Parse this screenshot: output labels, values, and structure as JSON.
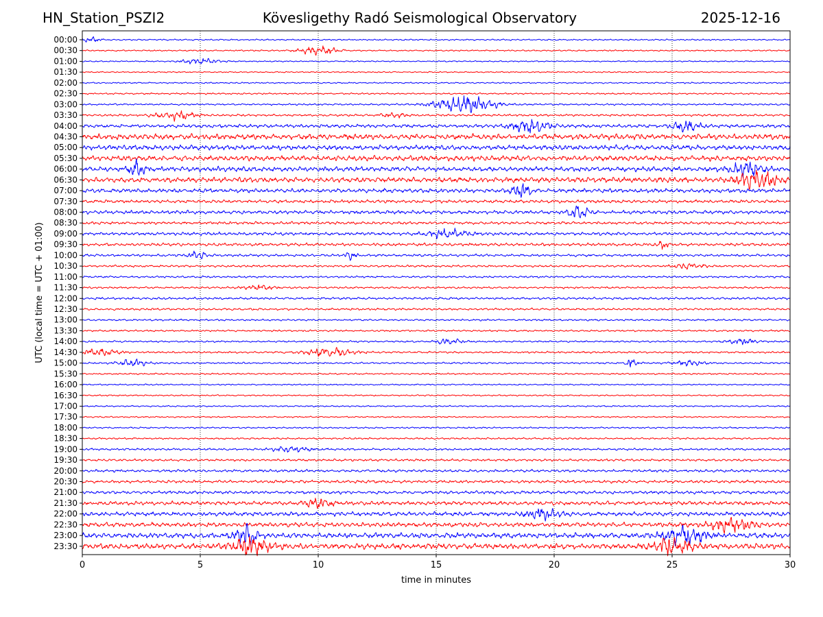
{
  "header": {
    "station": "HN_Station_PSZI2",
    "title": "Kövesligethy Radó Seismological Observatory",
    "date": "2025-12-16"
  },
  "chart_data": {
    "type": "line",
    "subtype": "helicorder",
    "title": "Kövesligethy Radó Seismological Observatory",
    "xlabel": "time in minutes",
    "ylabel": "UTC (local time = UTC + 01:00)",
    "xlim": [
      0,
      30
    ],
    "xticks": [
      0,
      5,
      10,
      15,
      20,
      25,
      30
    ],
    "grid": "vertical dotted at 5-minute intervals",
    "row_labels": [
      "00:00",
      "00:30",
      "01:00",
      "01:30",
      "02:00",
      "02:30",
      "03:00",
      "03:30",
      "04:00",
      "04:30",
      "05:00",
      "05:30",
      "06:00",
      "06:30",
      "07:00",
      "07:30",
      "08:00",
      "08:30",
      "09:00",
      "09:30",
      "10:00",
      "10:30",
      "11:00",
      "11:30",
      "12:00",
      "12:30",
      "13:00",
      "13:30",
      "14:00",
      "14:30",
      "15:00",
      "15:30",
      "16:00",
      "16:30",
      "17:00",
      "17:30",
      "18:00",
      "18:30",
      "19:00",
      "19:30",
      "20:00",
      "20:30",
      "21:00",
      "21:30",
      "22:00",
      "22:30",
      "23:00",
      "23:30"
    ],
    "trace_colors": [
      "#0000ff",
      "#ff0000"
    ],
    "noise_levels": [
      0.8,
      0.8,
      0.7,
      0.7,
      0.8,
      0.9,
      1.0,
      1.2,
      2.0,
      3.2,
      2.8,
      3.0,
      2.8,
      3.0,
      2.4,
      1.8,
      2.0,
      1.6,
      1.8,
      1.7,
      1.4,
      1.2,
      1.1,
      1.1,
      1.3,
      1.2,
      1.0,
      1.0,
      1.0,
      1.1,
      1.0,
      0.9,
      0.8,
      0.8,
      0.8,
      0.8,
      0.9,
      1.0,
      1.2,
      1.3,
      1.5,
      1.7,
      1.8,
      2.2,
      2.4,
      2.6,
      3.0,
      3.2
    ],
    "events": [
      {
        "row": 0,
        "minute": 0.4,
        "amp": 2.5,
        "width": 0.4
      },
      {
        "row": 1,
        "minute": 10.0,
        "amp": 5,
        "width": 0.8
      },
      {
        "row": 2,
        "minute": 5.0,
        "amp": 3,
        "width": 0.8
      },
      {
        "row": 6,
        "minute": 16.2,
        "amp": 10,
        "width": 1.2
      },
      {
        "row": 7,
        "minute": 3.9,
        "amp": 5,
        "width": 0.8
      },
      {
        "row": 7,
        "minute": 13.2,
        "amp": 2.5,
        "width": 0.5
      },
      {
        "row": 8,
        "minute": 19.0,
        "amp": 7,
        "width": 0.8
      },
      {
        "row": 8,
        "minute": 25.6,
        "amp": 7,
        "width": 0.5
      },
      {
        "row": 12,
        "minute": 2.3,
        "amp": 8,
        "width": 0.3
      },
      {
        "row": 12,
        "minute": 28.2,
        "amp": 8,
        "width": 0.6
      },
      {
        "row": 13,
        "minute": 28.6,
        "amp": 10,
        "width": 0.8
      },
      {
        "row": 14,
        "minute": 18.6,
        "amp": 7,
        "width": 0.4
      },
      {
        "row": 16,
        "minute": 21.0,
        "amp": 7,
        "width": 0.4
      },
      {
        "row": 18,
        "minute": 15.5,
        "amp": 5,
        "width": 0.8
      },
      {
        "row": 19,
        "minute": 24.6,
        "amp": 5,
        "width": 0.2
      },
      {
        "row": 20,
        "minute": 4.9,
        "amp": 5,
        "width": 0.3
      },
      {
        "row": 20,
        "minute": 11.4,
        "amp": 5,
        "width": 0.2
      },
      {
        "row": 21,
        "minute": 25.7,
        "amp": 3,
        "width": 0.6
      },
      {
        "row": 23,
        "minute": 7.5,
        "amp": 3,
        "width": 0.6
      },
      {
        "row": 28,
        "minute": 15.5,
        "amp": 3,
        "width": 0.6
      },
      {
        "row": 28,
        "minute": 28.0,
        "amp": 3,
        "width": 0.6
      },
      {
        "row": 29,
        "minute": 0.8,
        "amp": 4,
        "width": 0.7
      },
      {
        "row": 29,
        "minute": 10.5,
        "amp": 5,
        "width": 1.0
      },
      {
        "row": 30,
        "minute": 2.1,
        "amp": 4,
        "width": 0.6
      },
      {
        "row": 30,
        "minute": 23.3,
        "amp": 6,
        "width": 0.2
      },
      {
        "row": 30,
        "minute": 25.7,
        "amp": 3,
        "width": 0.6
      },
      {
        "row": 38,
        "minute": 8.8,
        "amp": 3,
        "width": 0.8
      },
      {
        "row": 43,
        "minute": 10.0,
        "amp": 5,
        "width": 0.6
      },
      {
        "row": 44,
        "minute": 19.5,
        "amp": 6,
        "width": 0.7
      },
      {
        "row": 45,
        "minute": 27.5,
        "amp": 8,
        "width": 0.8
      },
      {
        "row": 46,
        "minute": 7.0,
        "amp": 10,
        "width": 0.5
      },
      {
        "row": 46,
        "minute": 25.5,
        "amp": 10,
        "width": 0.8
      },
      {
        "row": 47,
        "minute": 7.2,
        "amp": 10,
        "width": 0.8
      },
      {
        "row": 47,
        "minute": 25.0,
        "amp": 10,
        "width": 0.8
      }
    ]
  }
}
